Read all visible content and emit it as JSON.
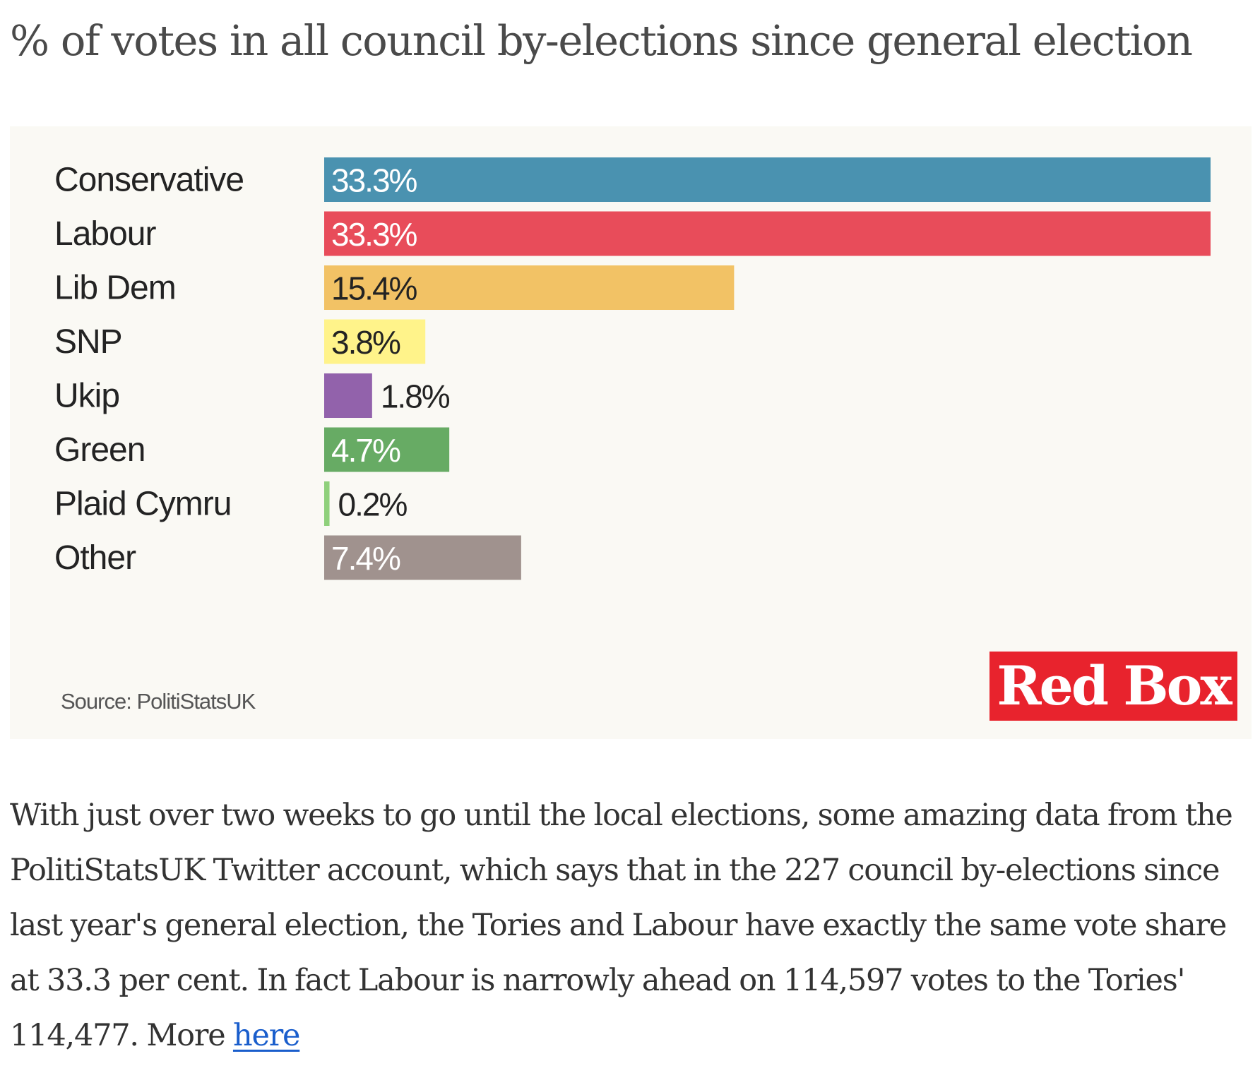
{
  "page": {
    "title": "% of votes in all council by-elections since general election"
  },
  "chart_data": {
    "type": "bar",
    "orientation": "horizontal",
    "title": "% of votes in all council by-elections since general election",
    "xlabel": "",
    "ylabel": "",
    "unit": "%",
    "xlim": [
      0,
      33.3
    ],
    "grid": false,
    "legend": "none",
    "categories": [
      "Conservative",
      "Labour",
      "Lib Dem",
      "SNP",
      "Ukip",
      "Green",
      "Plaid Cymru",
      "Other"
    ],
    "values": [
      33.3,
      33.3,
      15.4,
      3.8,
      1.8,
      4.7,
      0.2,
      7.4
    ],
    "value_labels": [
      "33.3%",
      "33.3%",
      "15.4%",
      "3.8%",
      "1.8%",
      "4.7%",
      "0.2%",
      "7.4%"
    ],
    "colors": [
      "#4a92b0",
      "#e84c5a",
      "#f2c265",
      "#fff38a",
      "#9262ab",
      "#67ab64",
      "#8fd07b",
      "#a0928e"
    ],
    "label_colors": [
      "#ffffff",
      "#ffffff",
      "#232323",
      "#232323",
      "#232323",
      "#ffffff",
      "#232323",
      "#ffffff"
    ],
    "source": "Source: PolitiStatsUK"
  },
  "branding": {
    "logo_text": "Red Box",
    "logo_color": "#e8232d"
  },
  "article": {
    "paragraph_before_link": "With just over two weeks to go until the local elections, some amazing data from the PolitiStatsUK Twitter account, which says that in the 227 council by-elections since last year's general election, the Tories and Labour have exactly the same vote share at 33.3 per cent. In fact Labour is narrowly ahead on 114,597 votes to the Tories' 114,477. More ",
    "link_text": "here",
    "link_color": "#1a5ecc"
  }
}
